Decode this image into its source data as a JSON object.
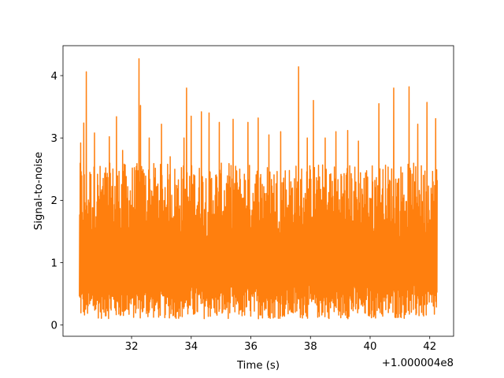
{
  "chart_data": {
    "type": "line",
    "title": "",
    "xlabel": "Time (s)",
    "ylabel": "Signal-to-noise",
    "x_offset_label": "+1.000004e8",
    "xlim": [
      29.7,
      42.8
    ],
    "ylim": [
      -0.18,
      4.48
    ],
    "x_ticks": [
      32,
      34,
      36,
      38,
      40,
      42
    ],
    "x_tick_labels": [
      "32",
      "34",
      "36",
      "38",
      "40",
      "42"
    ],
    "y_ticks": [
      0,
      1,
      2,
      3,
      4
    ],
    "y_tick_labels": [
      "0",
      "1",
      "2",
      "3",
      "4"
    ],
    "grid": false,
    "series": [
      {
        "color": "#ff7f0e",
        "x_range": [
          30.25,
          42.25
        ],
        "n_points": 1400,
        "noise_floor": 0.1,
        "typical_peak": 2.6,
        "peaks": [
          {
            "x": 30.3,
            "y": 2.92
          },
          {
            "x": 30.4,
            "y": 3.24
          },
          {
            "x": 30.48,
            "y": 4.06
          },
          {
            "x": 30.75,
            "y": 3.08
          },
          {
            "x": 31.25,
            "y": 3.02
          },
          {
            "x": 31.5,
            "y": 3.34
          },
          {
            "x": 31.7,
            "y": 2.8
          },
          {
            "x": 32.24,
            "y": 4.27
          },
          {
            "x": 32.3,
            "y": 3.52
          },
          {
            "x": 32.6,
            "y": 3.0
          },
          {
            "x": 33.0,
            "y": 3.22
          },
          {
            "x": 33.3,
            "y": 2.7
          },
          {
            "x": 33.75,
            "y": 3.0
          },
          {
            "x": 33.85,
            "y": 3.8
          },
          {
            "x": 34.0,
            "y": 3.35
          },
          {
            "x": 34.35,
            "y": 3.42
          },
          {
            "x": 34.6,
            "y": 3.4
          },
          {
            "x": 34.95,
            "y": 3.25
          },
          {
            "x": 35.4,
            "y": 3.3
          },
          {
            "x": 35.9,
            "y": 3.25
          },
          {
            "x": 36.25,
            "y": 3.32
          },
          {
            "x": 36.6,
            "y": 3.05
          },
          {
            "x": 37.0,
            "y": 3.1
          },
          {
            "x": 37.6,
            "y": 4.14
          },
          {
            "x": 37.9,
            "y": 3.0
          },
          {
            "x": 38.1,
            "y": 3.6
          },
          {
            "x": 38.5,
            "y": 3.0
          },
          {
            "x": 38.85,
            "y": 3.1
          },
          {
            "x": 39.25,
            "y": 3.12
          },
          {
            "x": 39.6,
            "y": 2.95
          },
          {
            "x": 40.3,
            "y": 3.55
          },
          {
            "x": 40.8,
            "y": 3.8
          },
          {
            "x": 41.3,
            "y": 3.82
          },
          {
            "x": 41.6,
            "y": 3.22
          },
          {
            "x": 41.9,
            "y": 3.57
          },
          {
            "x": 42.2,
            "y": 3.31
          }
        ]
      }
    ]
  }
}
